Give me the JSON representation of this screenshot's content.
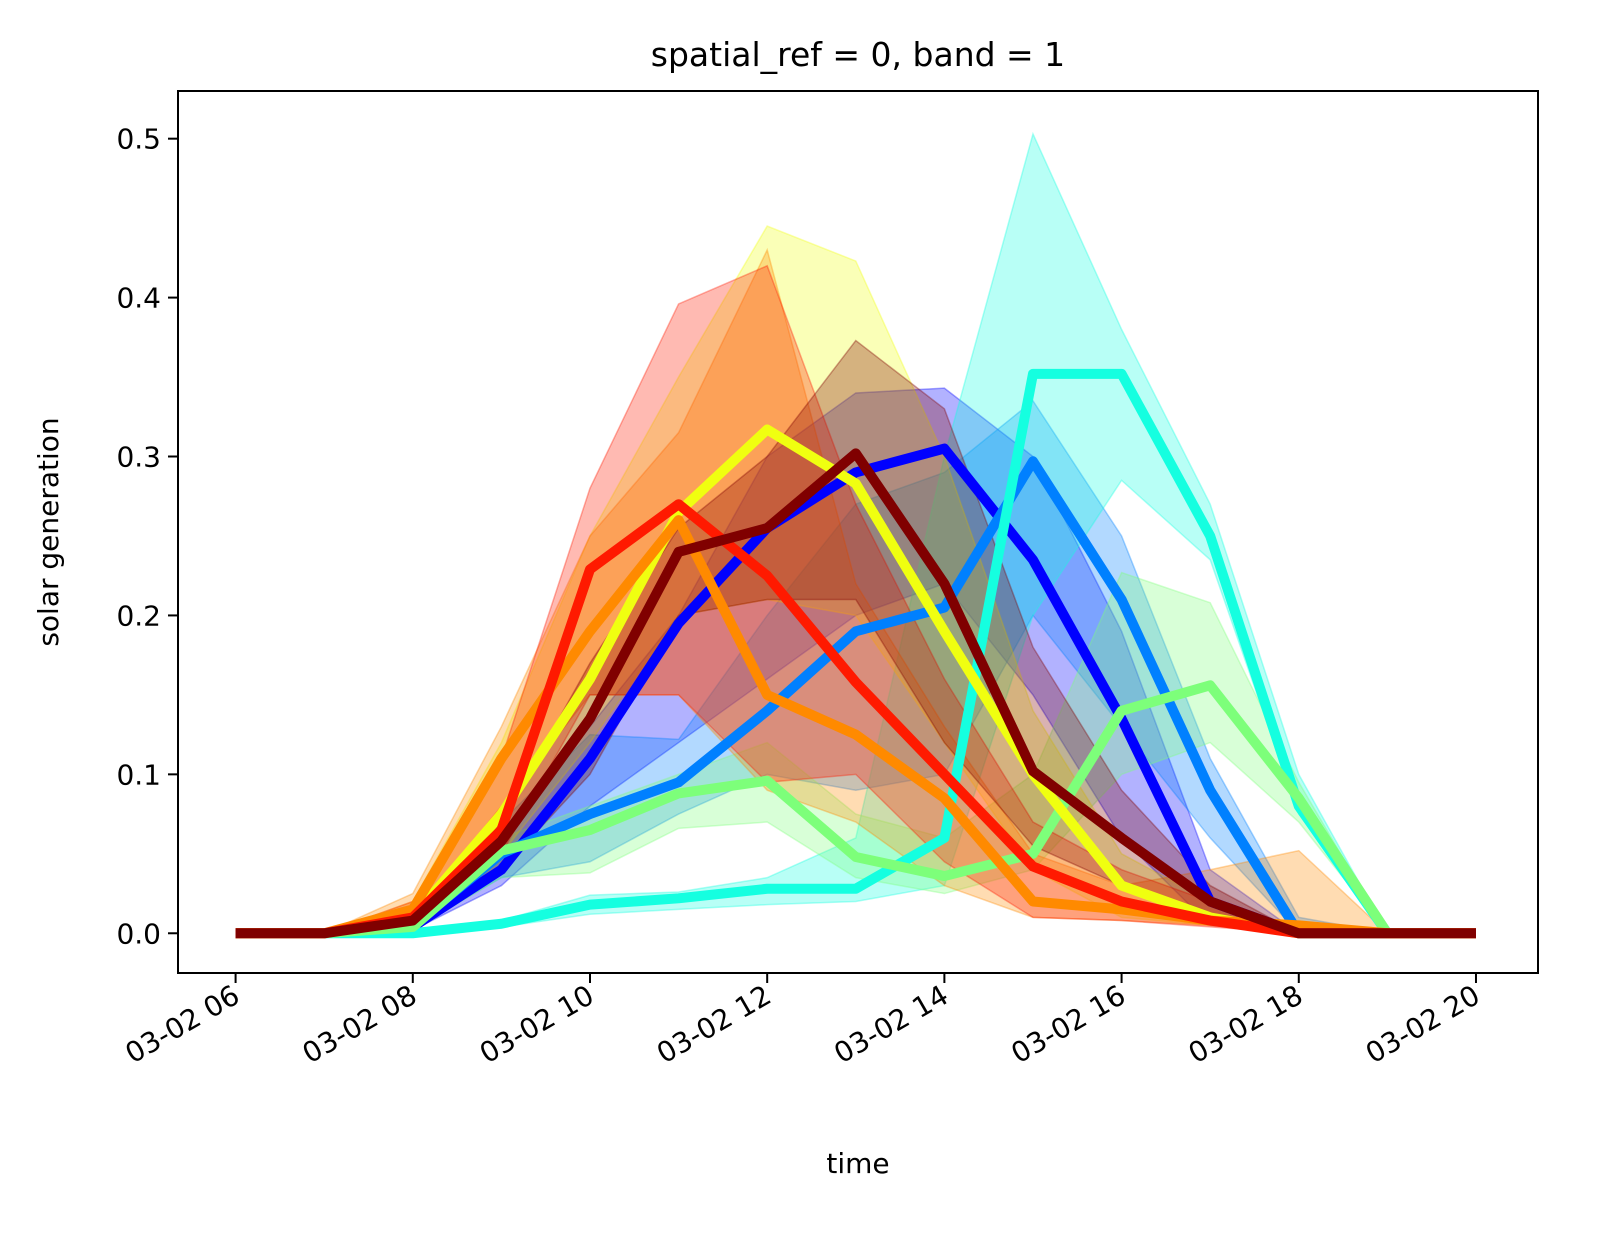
{
  "chart_data": {
    "type": "line",
    "title": "spatial_ref = 0, band = 1",
    "xlabel": "time",
    "ylabel": "solar generation",
    "x_ticks": [
      "03-02 06",
      "03-02 08",
      "03-02 10",
      "03-02 12",
      "03-02 14",
      "03-02 16",
      "03-02 18",
      "03-02 20"
    ],
    "y_ticks": [
      "0.0",
      "0.1",
      "0.2",
      "0.3",
      "0.4",
      "0.5"
    ],
    "xlim": [
      5.35,
      20.7
    ],
    "ylim": [
      -0.025,
      0.53
    ],
    "grid": false,
    "x": [
      6,
      7,
      8,
      9,
      10,
      11,
      12,
      13,
      14,
      15,
      16,
      17,
      18,
      19,
      20
    ],
    "series": [
      {
        "color": "#0000ff",
        "values": [
          0,
          0,
          0.004,
          0.04,
          0.11,
          0.195,
          0.255,
          0.29,
          0.305,
          0.235,
          0.135,
          0.02,
          0,
          0,
          0
        ],
        "band_low": [
          0,
          0,
          0.002,
          0.03,
          0.08,
          0.12,
          0.16,
          0.2,
          0.22,
          0.15,
          0.06,
          0.005,
          0,
          0,
          0
        ],
        "band_high": [
          0,
          0,
          0.01,
          0.06,
          0.13,
          0.2,
          0.3,
          0.34,
          0.343,
          0.3,
          0.19,
          0.04,
          0,
          0,
          0
        ]
      },
      {
        "color": "#0080ff",
        "values": [
          0,
          0,
          0.005,
          0.05,
          0.075,
          0.095,
          0.14,
          0.19,
          0.205,
          0.297,
          0.21,
          0.09,
          0,
          0,
          0
        ],
        "band_low": [
          0,
          0,
          0.003,
          0.035,
          0.045,
          0.075,
          0.1,
          0.09,
          0.1,
          0.2,
          0.13,
          0.06,
          0,
          0,
          0
        ],
        "band_high": [
          0,
          0,
          0.01,
          0.07,
          0.125,
          0.122,
          0.2,
          0.27,
          0.29,
          0.335,
          0.25,
          0.11,
          0.01,
          0,
          0
        ]
      },
      {
        "color": "#15ffe0",
        "values": [
          0,
          0,
          0,
          0.006,
          0.018,
          0.022,
          0.028,
          0.028,
          0.06,
          0.352,
          0.352,
          0.25,
          0.08,
          0,
          0
        ],
        "band_low": [
          0,
          0,
          0,
          0.004,
          0.012,
          0.015,
          0.018,
          0.02,
          0.03,
          0.2,
          0.285,
          0.235,
          0.075,
          0,
          0
        ],
        "band_high": [
          0,
          0,
          0,
          0.008,
          0.024,
          0.026,
          0.035,
          0.06,
          0.3,
          0.503,
          0.38,
          0.27,
          0.1,
          0,
          0
        ]
      },
      {
        "color": "#7dff7a",
        "values": [
          0,
          0,
          0.004,
          0.052,
          0.065,
          0.088,
          0.096,
          0.048,
          0.036,
          0.05,
          0.14,
          0.156,
          0.085,
          0,
          0
        ],
        "band_low": [
          0,
          0,
          0.002,
          0.035,
          0.038,
          0.066,
          0.07,
          0.035,
          0.025,
          0.04,
          0.1,
          0.12,
          0.07,
          0,
          0
        ],
        "band_high": [
          0,
          0,
          0.006,
          0.06,
          0.08,
          0.1,
          0.12,
          0.075,
          0.06,
          0.1,
          0.227,
          0.208,
          0.095,
          0,
          0
        ]
      },
      {
        "color": "#f0ff10",
        "values": [
          0,
          0,
          0.01,
          0.075,
          0.16,
          0.265,
          0.317,
          0.283,
          0.19,
          0.1,
          0.03,
          0.01,
          0,
          0,
          0
        ],
        "band_low": [
          0,
          0,
          0.005,
          0.05,
          0.12,
          0.2,
          0.21,
          0.2,
          0.12,
          0.04,
          0.01,
          0.005,
          0,
          0,
          0
        ],
        "band_high": [
          0,
          0,
          0.02,
          0.12,
          0.25,
          0.35,
          0.445,
          0.423,
          0.3,
          0.14,
          0.05,
          0.02,
          0,
          0,
          0
        ]
      },
      {
        "color": "#ff8a00",
        "values": [
          0,
          0,
          0.015,
          0.11,
          0.19,
          0.26,
          0.15,
          0.125,
          0.085,
          0.02,
          0.015,
          0.008,
          0.005,
          0,
          0
        ],
        "band_low": [
          0,
          0,
          0.01,
          0.08,
          0.15,
          0.15,
          0.09,
          0.07,
          0.03,
          0.01,
          0.008,
          0.005,
          0.002,
          0,
          0
        ],
        "band_high": [
          0,
          0,
          0.025,
          0.13,
          0.25,
          0.315,
          0.43,
          0.22,
          0.13,
          0.05,
          0.03,
          0.04,
          0.052,
          0,
          0
        ]
      },
      {
        "color": "#ff1a00",
        "values": [
          0,
          0,
          0.01,
          0.065,
          0.229,
          0.27,
          0.225,
          0.158,
          0.1,
          0.042,
          0.02,
          0.008,
          0,
          0,
          0
        ],
        "band_low": [
          0,
          0,
          0.005,
          0.05,
          0.15,
          0.15,
          0.095,
          0.1,
          0.045,
          0.01,
          0.008,
          0.004,
          0,
          0,
          0
        ],
        "band_high": [
          0,
          0,
          0.02,
          0.11,
          0.28,
          0.396,
          0.42,
          0.27,
          0.16,
          0.07,
          0.04,
          0.02,
          0,
          0,
          0
        ]
      },
      {
        "color": "#800000",
        "values": [
          0,
          0,
          0.008,
          0.058,
          0.135,
          0.24,
          0.255,
          0.302,
          0.22,
          0.102,
          0.06,
          0.02,
          0,
          0,
          0
        ],
        "band_low": [
          0,
          0,
          0.004,
          0.04,
          0.1,
          0.2,
          0.21,
          0.21,
          0.12,
          0.055,
          0.03,
          0.01,
          0,
          0,
          0
        ],
        "band_high": [
          0,
          0,
          0.015,
          0.07,
          0.17,
          0.255,
          0.3,
          0.373,
          0.33,
          0.18,
          0.09,
          0.03,
          0,
          0,
          0
        ]
      }
    ]
  }
}
